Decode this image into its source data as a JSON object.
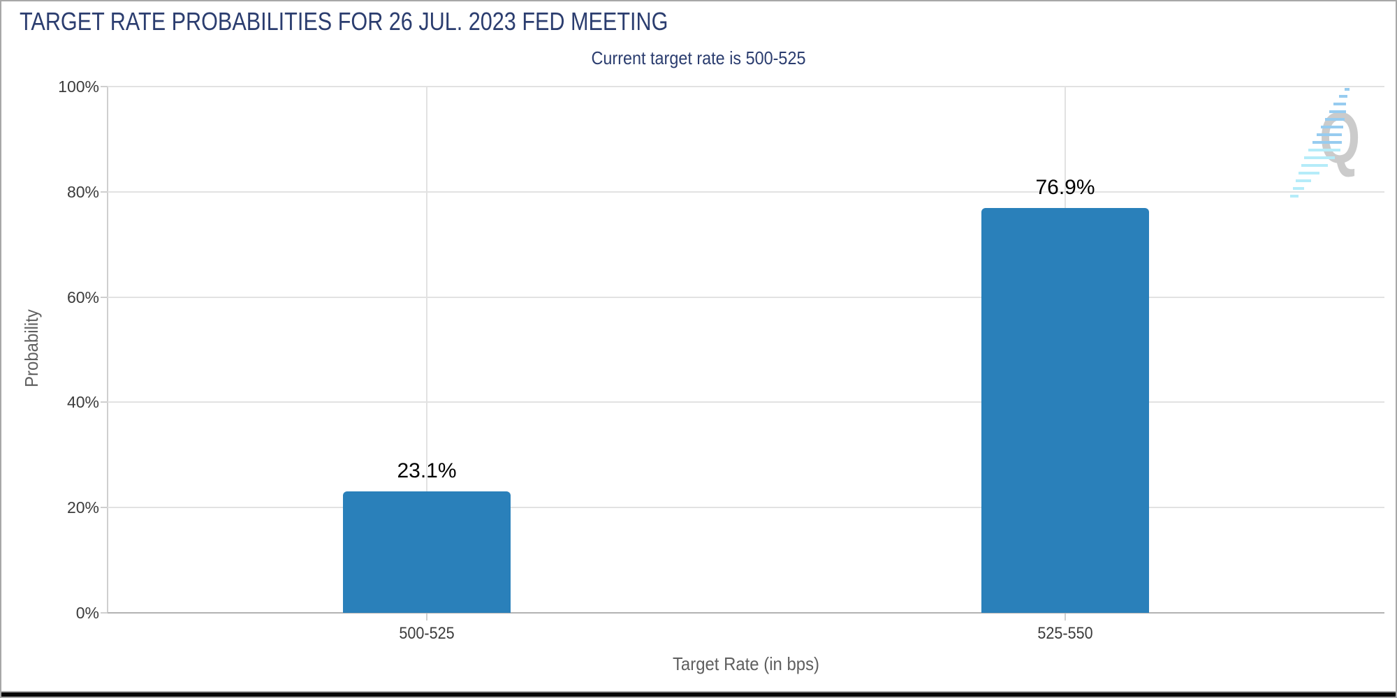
{
  "header": {
    "title": "TARGET RATE PROBABILITIES FOR 26 JUL. 2023 FED MEETING",
    "subtitle": "Current target rate is 500-525"
  },
  "colors": {
    "title_text": "#2b3d6f",
    "bar": "#2a80ba",
    "grid": "#e2e2e2",
    "x_axis_line": "#b3b3b3",
    "y_axis_line": "#cfcfcf",
    "tick_label": "#3c3c3c",
    "axis_title": "#5f5f5f",
    "value_label": "#000000",
    "watermark_gray": "#cbcbcb",
    "watermark_cyan": "#b5ecf9",
    "watermark_blue": "#97ccf0",
    "frame_border": "#a8a8a8",
    "bottom_strip": "#050505"
  },
  "chart_data": {
    "type": "bar",
    "title": "TARGET RATE PROBABILITIES FOR 26 JUL. 2023 FED MEETING",
    "subtitle": "Current target rate is 500-525",
    "categories": [
      "500-525",
      "525-550"
    ],
    "values": [
      23.1,
      76.9
    ],
    "value_labels": [
      "23.1%",
      "76.9%"
    ],
    "xlabel": "Target Rate (in bps)",
    "ylabel": "Probability",
    "ylim": [
      0,
      100
    ],
    "ytick_values": [
      0,
      20,
      40,
      60,
      80,
      100
    ],
    "yticks": [
      "0%",
      "20%",
      "40%",
      "60%",
      "80%",
      "100%"
    ],
    "grid": true,
    "legend": "none",
    "bar_color": "#2a80ba"
  },
  "watermark": {
    "letter": "Q"
  }
}
